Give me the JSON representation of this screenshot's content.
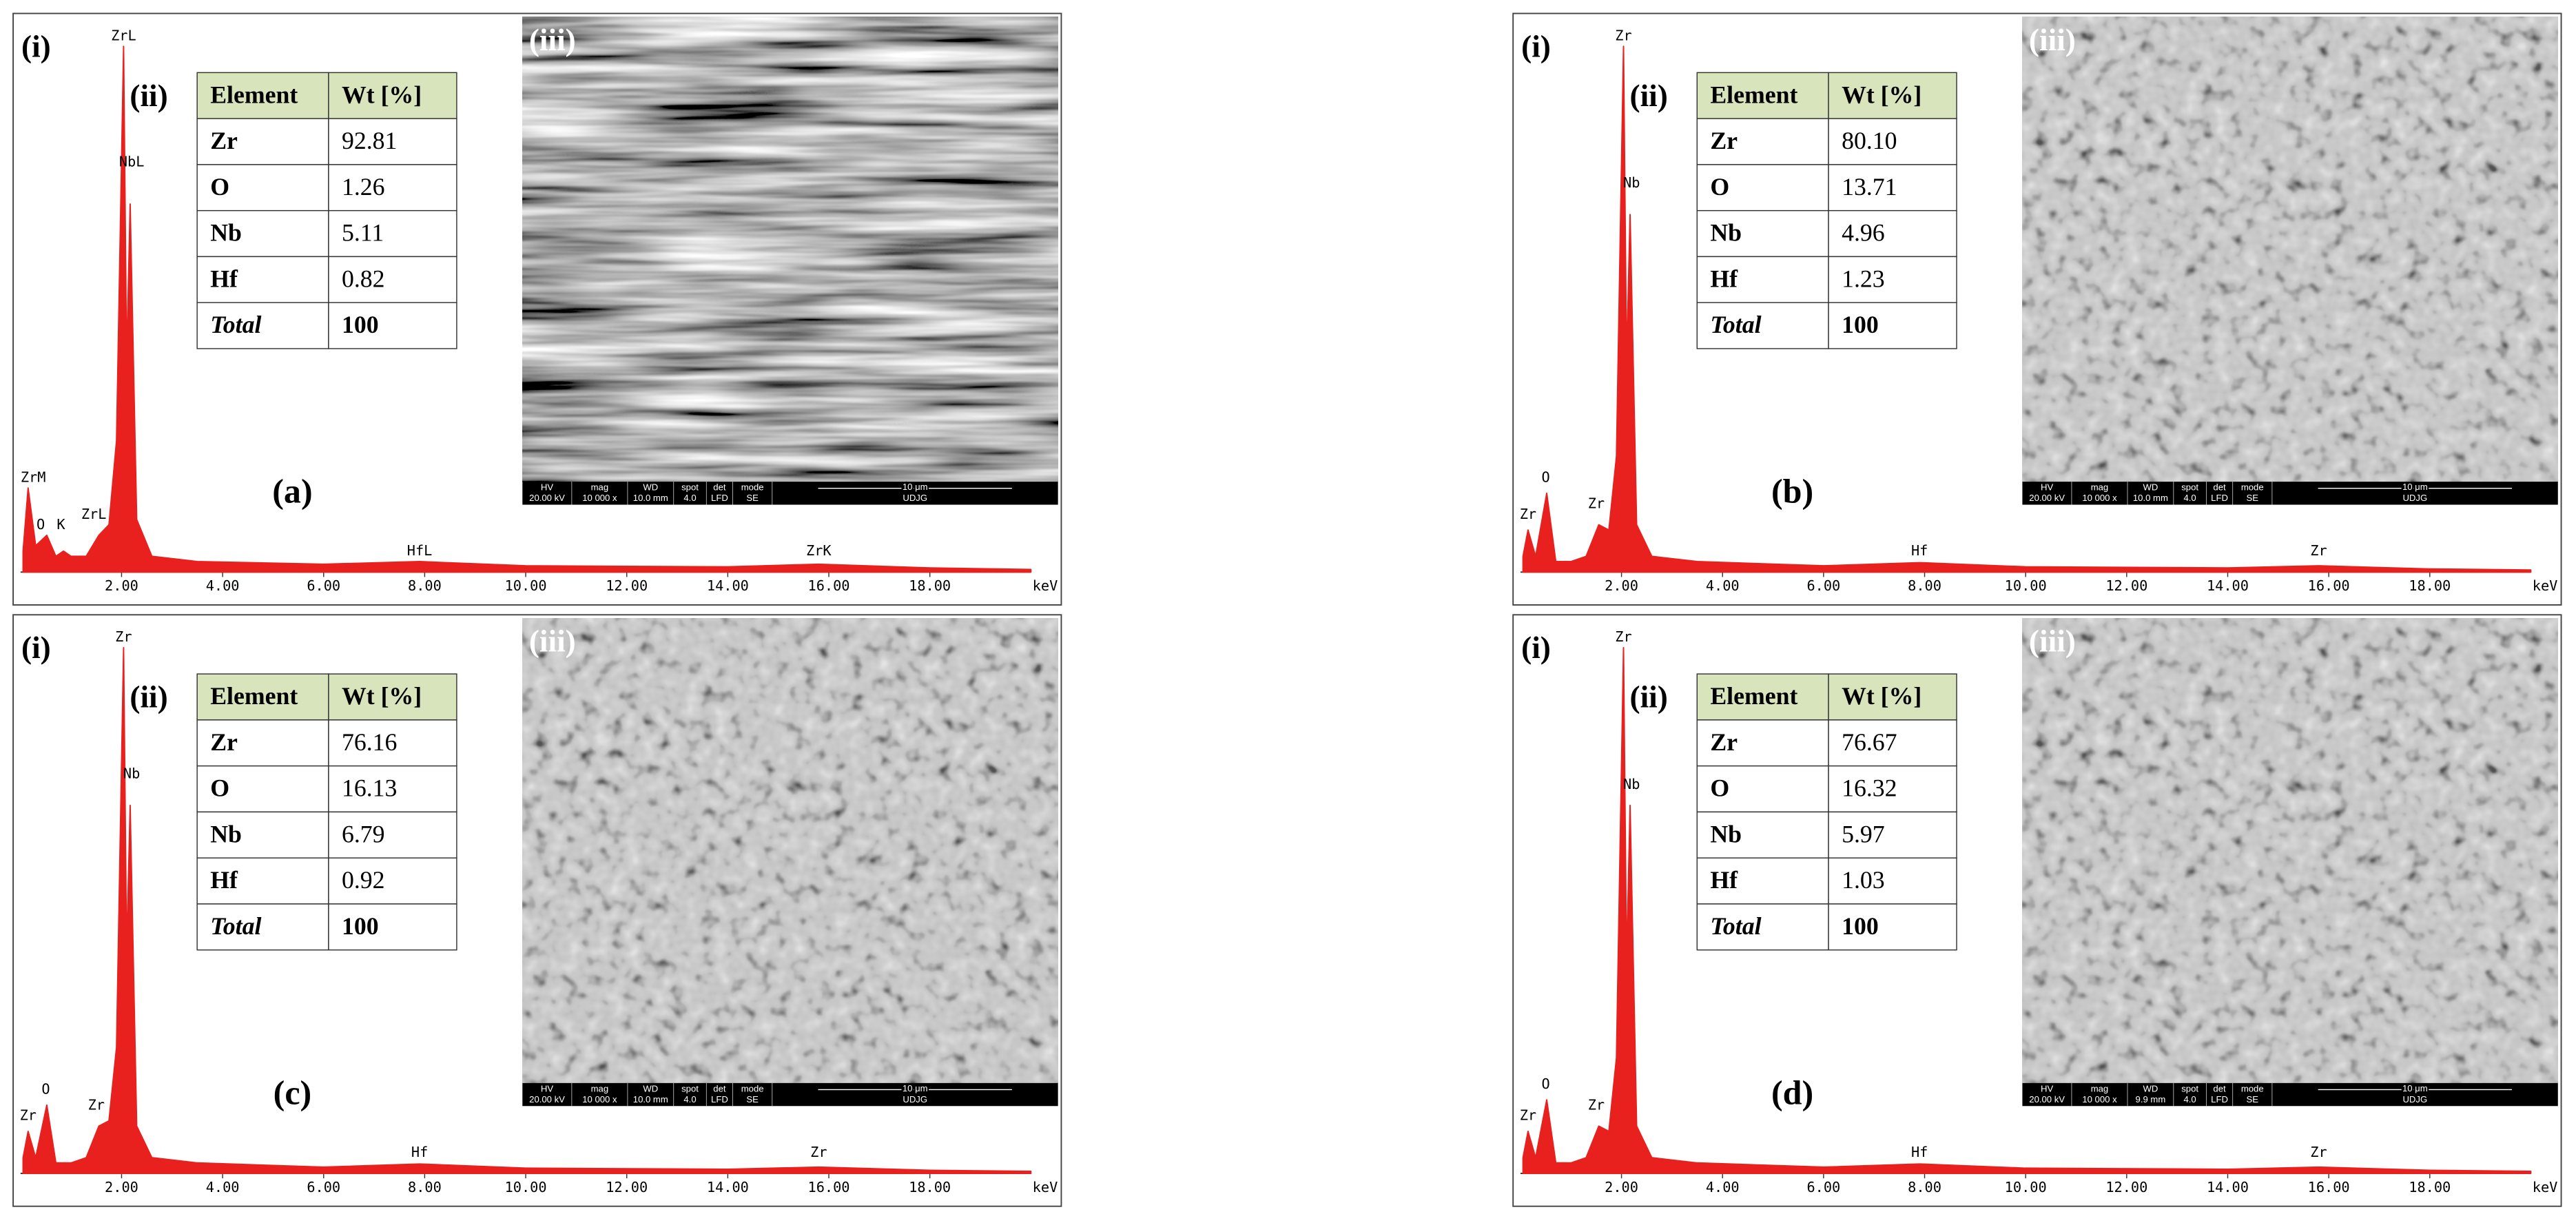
{
  "chart_data": [
    {
      "type": "line",
      "color": "#e8201e",
      "xlabel": "keV",
      "xlim": [
        0,
        20
      ],
      "ylim": [
        0,
        100
      ],
      "xticks": [
        {
          "value": 2,
          "label": "2.00"
        },
        {
          "value": 4,
          "label": "4.00"
        },
        {
          "value": 6,
          "label": "6.00"
        },
        {
          "value": 8,
          "label": "8.00"
        },
        {
          "value": 10,
          "label": "10.00"
        },
        {
          "value": 12,
          "label": "12.00"
        },
        {
          "value": 14,
          "label": "14.00"
        },
        {
          "value": 16,
          "label": "16.00"
        },
        {
          "value": 18,
          "label": "18.00"
        }
      ],
      "x": [
        0.05,
        0.15,
        0.3,
        0.52,
        0.7,
        0.85,
        1.0,
        1.3,
        1.55,
        1.75,
        1.9,
        2.04,
        2.1,
        2.17,
        2.3,
        2.6,
        3.5,
        6,
        7.9,
        10,
        14,
        15.8,
        18,
        20
      ],
      "values": [
        4,
        16,
        5,
        7,
        3,
        4,
        3,
        3,
        7,
        9,
        25,
        100,
        40,
        70,
        10,
        3,
        2,
        1.5,
        2,
        1.2,
        1,
        1.5,
        0.8,
        0.5
      ],
      "annotations": [
        {
          "text": "ZrL",
          "x": 2.04,
          "y": 100
        },
        {
          "text": "NbL",
          "x": 2.2,
          "y": 76
        },
        {
          "text": "ZrM",
          "x": 0.25,
          "y": 16
        },
        {
          "text": "O",
          "x": 0.4,
          "y": 7
        },
        {
          "text": "K",
          "x": 0.8,
          "y": 7
        },
        {
          "text": "ZrL",
          "x": 1.45,
          "y": 9
        },
        {
          "text": "HfL",
          "x": 7.9,
          "y": 2
        },
        {
          "text": "ZrK",
          "x": 15.8,
          "y": 2
        }
      ]
    },
    {
      "type": "line",
      "color": "#e8201e",
      "xlabel": "keV",
      "xlim": [
        0,
        20
      ],
      "ylim": [
        0,
        100
      ],
      "xticks": [
        {
          "value": 2,
          "label": "2.00"
        },
        {
          "value": 4,
          "label": "4.00"
        },
        {
          "value": 6,
          "label": "6.00"
        },
        {
          "value": 8,
          "label": "8.00"
        },
        {
          "value": 10,
          "label": "10.00"
        },
        {
          "value": 12,
          "label": "12.00"
        },
        {
          "value": 14,
          "label": "14.00"
        },
        {
          "value": 16,
          "label": "16.00"
        },
        {
          "value": 18,
          "label": "18.00"
        }
      ],
      "x": [
        0.05,
        0.15,
        0.3,
        0.52,
        0.7,
        0.85,
        1.0,
        1.3,
        1.55,
        1.75,
        1.9,
        2.04,
        2.1,
        2.17,
        2.3,
        2.6,
        3.5,
        6,
        7.9,
        10,
        14,
        15.8,
        18,
        20
      ],
      "values": [
        3,
        8,
        3,
        15,
        2,
        2,
        2,
        3,
        9,
        8,
        22,
        100,
        40,
        68,
        9,
        3,
        2,
        1.2,
        1.8,
        1,
        0.8,
        1.2,
        0.6,
        0.4
      ],
      "annotations": [
        {
          "text": "Zr",
          "x": 2.04,
          "y": 100
        },
        {
          "text": "Nb",
          "x": 2.2,
          "y": 72
        },
        {
          "text": "O",
          "x": 0.5,
          "y": 16
        },
        {
          "text": "Zr",
          "x": 0.15,
          "y": 9
        },
        {
          "text": "Zr",
          "x": 1.5,
          "y": 11
        },
        {
          "text": "Hf",
          "x": 7.9,
          "y": 2
        },
        {
          "text": "Zr",
          "x": 15.8,
          "y": 2
        }
      ]
    },
    {
      "type": "line",
      "color": "#e8201e",
      "xlabel": "keV",
      "xlim": [
        0,
        20
      ],
      "ylim": [
        0,
        100
      ],
      "xticks": [
        {
          "value": 2,
          "label": "2.00"
        },
        {
          "value": 4,
          "label": "4.00"
        },
        {
          "value": 6,
          "label": "6.00"
        },
        {
          "value": 8,
          "label": "8.00"
        },
        {
          "value": 10,
          "label": "10.00"
        },
        {
          "value": 12,
          "label": "12.00"
        },
        {
          "value": 14,
          "label": "14.00"
        },
        {
          "value": 16,
          "label": "16.00"
        },
        {
          "value": 18,
          "label": "18.00"
        }
      ],
      "x": [
        0.05,
        0.15,
        0.3,
        0.52,
        0.7,
        0.85,
        1.0,
        1.3,
        1.55,
        1.75,
        1.9,
        2.04,
        2.1,
        2.17,
        2.3,
        2.6,
        3.5,
        6,
        7.9,
        10,
        14,
        15.8,
        18,
        20
      ],
      "values": [
        3,
        8,
        3,
        13,
        2,
        2,
        2,
        3,
        9,
        10,
        24,
        100,
        42,
        70,
        9,
        3,
        2,
        1.2,
        1.8,
        1,
        0.8,
        1.2,
        0.6,
        0.4
      ],
      "annotations": [
        {
          "text": "Zr",
          "x": 2.04,
          "y": 100
        },
        {
          "text": "Nb",
          "x": 2.2,
          "y": 74
        },
        {
          "text": "O",
          "x": 0.5,
          "y": 14
        },
        {
          "text": "Zr",
          "x": 0.15,
          "y": 9
        },
        {
          "text": "Zr",
          "x": 1.5,
          "y": 11
        },
        {
          "text": "Hf",
          "x": 7.9,
          "y": 2
        },
        {
          "text": "Zr",
          "x": 15.8,
          "y": 2
        }
      ]
    },
    {
      "type": "line",
      "color": "#e8201e",
      "xlabel": "keV",
      "xlim": [
        0,
        20
      ],
      "ylim": [
        0,
        100
      ],
      "xticks": [
        {
          "value": 2,
          "label": "2.00"
        },
        {
          "value": 4,
          "label": "4.00"
        },
        {
          "value": 6,
          "label": "6.00"
        },
        {
          "value": 8,
          "label": "8.00"
        },
        {
          "value": 10,
          "label": "10.00"
        },
        {
          "value": 12,
          "label": "12.00"
        },
        {
          "value": 14,
          "label": "14.00"
        },
        {
          "value": 16,
          "label": "16.00"
        },
        {
          "value": 18,
          "label": "18.00"
        }
      ],
      "x": [
        0.05,
        0.15,
        0.3,
        0.52,
        0.7,
        0.85,
        1.0,
        1.3,
        1.55,
        1.75,
        1.9,
        2.04,
        2.1,
        2.17,
        2.3,
        2.6,
        3.5,
        6,
        7.9,
        10,
        14,
        15.8,
        18,
        20
      ],
      "values": [
        3,
        8,
        3,
        14,
        2,
        2,
        2,
        3,
        9,
        8,
        22,
        100,
        40,
        70,
        9,
        3,
        2,
        1.2,
        1.8,
        1,
        0.8,
        1.2,
        0.6,
        0.4
      ],
      "annotations": [
        {
          "text": "Zr",
          "x": 2.04,
          "y": 100
        },
        {
          "text": "Nb",
          "x": 2.2,
          "y": 72
        },
        {
          "text": "O",
          "x": 0.5,
          "y": 15
        },
        {
          "text": "Zr",
          "x": 0.15,
          "y": 9
        },
        {
          "text": "Zr",
          "x": 1.5,
          "y": 11
        },
        {
          "text": "Hf",
          "x": 7.9,
          "y": 2
        },
        {
          "text": "Zr",
          "x": 15.8,
          "y": 2
        }
      ]
    }
  ],
  "panels": [
    {
      "label": "(a)",
      "markers": [
        "(i)",
        "(ii)",
        "(iii)"
      ],
      "table": {
        "header": [
          "Element",
          "Wt [%]"
        ],
        "rows": [
          [
            "Zr",
            "92.81"
          ],
          [
            "O",
            "1.26"
          ],
          [
            "Nb",
            "5.11"
          ],
          [
            "Hf",
            "0.82"
          ],
          [
            "Total",
            "100"
          ]
        ]
      },
      "sem_bar": {
        "labels": [
          "HV",
          "mag",
          "WD",
          "spot",
          "det",
          "mode"
        ],
        "values": [
          "20.00 kV",
          "10 000 x",
          "10.0 mm",
          "4.0",
          "LFD",
          "SE"
        ],
        "scale": "10 μm",
        "operator": "UDJG"
      }
    },
    {
      "label": "(b)",
      "markers": [
        "(i)",
        "(ii)",
        "(iii)"
      ],
      "table": {
        "header": [
          "Element",
          "Wt [%]"
        ],
        "rows": [
          [
            "Zr",
            "80.10"
          ],
          [
            "O",
            "13.71"
          ],
          [
            "Nb",
            "4.96"
          ],
          [
            "Hf",
            "1.23"
          ],
          [
            "Total",
            "100"
          ]
        ]
      },
      "sem_bar": {
        "labels": [
          "HV",
          "mag",
          "WD",
          "spot",
          "det",
          "mode"
        ],
        "values": [
          "20.00 kV",
          "10 000 x",
          "10.0 mm",
          "4.0",
          "LFD",
          "SE"
        ],
        "scale": "10 μm",
        "operator": "UDJG"
      }
    },
    {
      "label": "(c)",
      "markers": [
        "(i)",
        "(ii)",
        "(iii)"
      ],
      "table": {
        "header": [
          "Element",
          "Wt [%]"
        ],
        "rows": [
          [
            "Zr",
            "76.16"
          ],
          [
            "O",
            "16.13"
          ],
          [
            "Nb",
            "6.79"
          ],
          [
            "Hf",
            "0.92"
          ],
          [
            "Total",
            "100"
          ]
        ]
      },
      "sem_bar": {
        "labels": [
          "HV",
          "mag",
          "WD",
          "spot",
          "det",
          "mode"
        ],
        "values": [
          "20.00 kV",
          "10 000 x",
          "10.0 mm",
          "4.0",
          "LFD",
          "SE"
        ],
        "scale": "10 μm",
        "operator": "UDJG"
      }
    },
    {
      "label": "(d)",
      "markers": [
        "(i)",
        "(ii)",
        "(iii)"
      ],
      "table": {
        "header": [
          "Element",
          "Wt [%]"
        ],
        "rows": [
          [
            "Zr",
            "76.67"
          ],
          [
            "O",
            "16.32"
          ],
          [
            "Nb",
            "5.97"
          ],
          [
            "Hf",
            "1.03"
          ],
          [
            "Total",
            "100"
          ]
        ]
      },
      "sem_bar": {
        "labels": [
          "HV",
          "mag",
          "WD",
          "spot",
          "det",
          "mode"
        ],
        "values": [
          "20.00 kV",
          "10 000 x",
          "9.9 mm",
          "4.0",
          "LFD",
          "SE"
        ],
        "scale": "10 μm",
        "operator": "UDJG"
      }
    }
  ]
}
